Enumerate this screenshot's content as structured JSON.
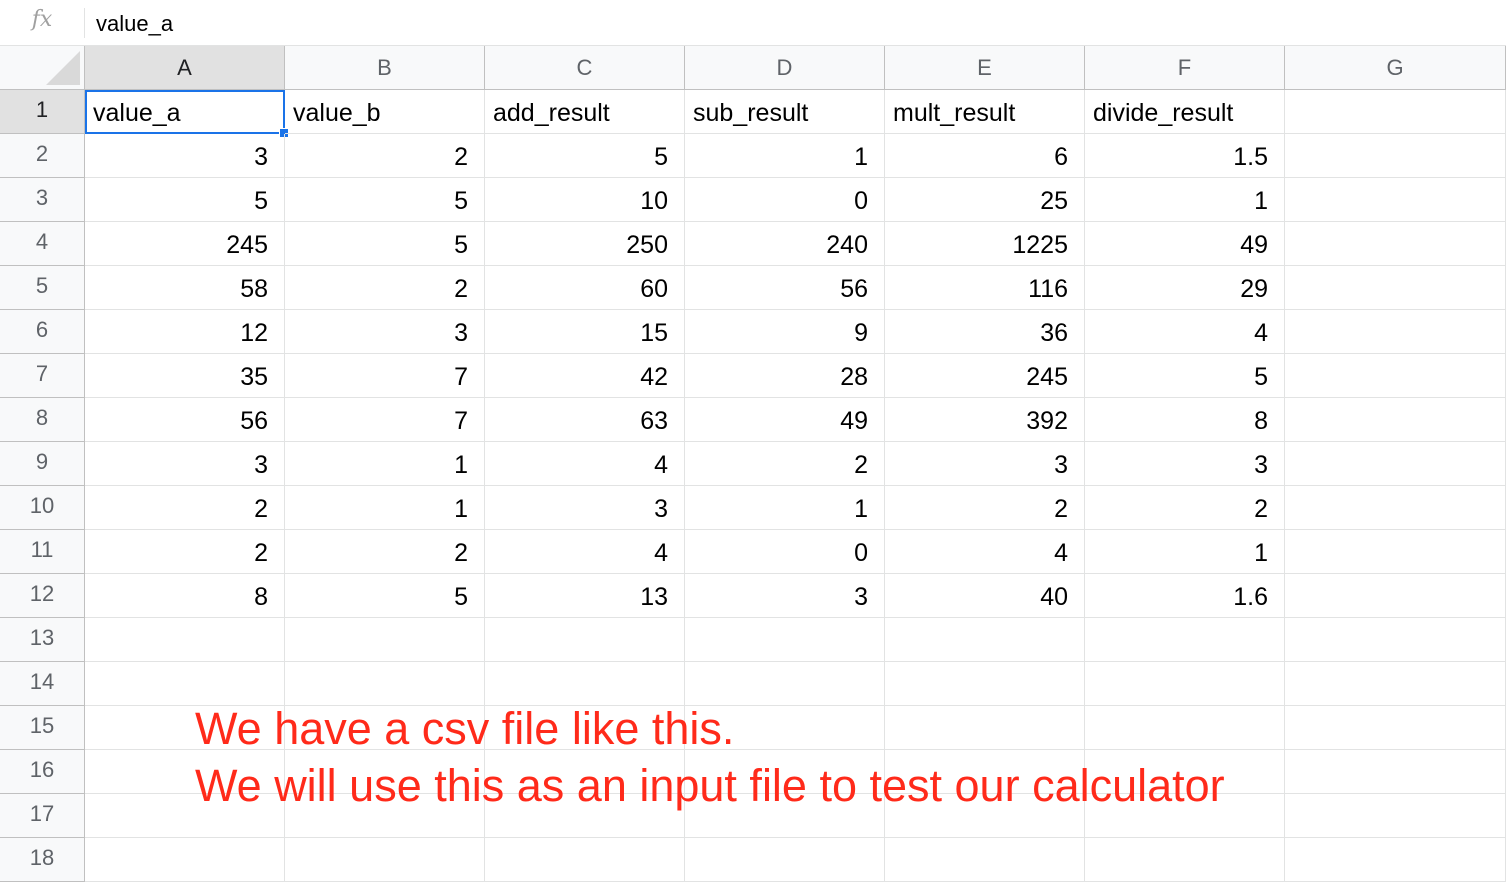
{
  "formula_bar": {
    "fx_label": "fx",
    "value": "value_a"
  },
  "columns": [
    "A",
    "B",
    "C",
    "D",
    "E",
    "F",
    "G"
  ],
  "row_numbers": [
    "1",
    "2",
    "3",
    "4",
    "5",
    "6",
    "7",
    "8",
    "9",
    "10",
    "11",
    "12",
    "13",
    "14",
    "15",
    "16",
    "17",
    "18"
  ],
  "selected_cell": "A1",
  "rows": [
    [
      "value_a",
      "value_b",
      "add_result",
      "sub_result",
      "mult_result",
      "divide_result",
      ""
    ],
    [
      "3",
      "2",
      "5",
      "1",
      "6",
      "1.5",
      ""
    ],
    [
      "5",
      "5",
      "10",
      "0",
      "25",
      "1",
      ""
    ],
    [
      "245",
      "5",
      "250",
      "240",
      "1225",
      "49",
      ""
    ],
    [
      "58",
      "2",
      "60",
      "56",
      "116",
      "29",
      ""
    ],
    [
      "12",
      "3",
      "15",
      "9",
      "36",
      "4",
      ""
    ],
    [
      "35",
      "7",
      "42",
      "28",
      "245",
      "5",
      ""
    ],
    [
      "56",
      "7",
      "63",
      "49",
      "392",
      "8",
      ""
    ],
    [
      "3",
      "1",
      "4",
      "2",
      "3",
      "3",
      ""
    ],
    [
      "2",
      "1",
      "3",
      "1",
      "2",
      "2",
      ""
    ],
    [
      "2",
      "2",
      "4",
      "0",
      "4",
      "1",
      ""
    ],
    [
      "8",
      "5",
      "13",
      "3",
      "40",
      "1.6",
      ""
    ],
    [
      "",
      "",
      "",
      "",
      "",
      "",
      ""
    ],
    [
      "",
      "",
      "",
      "",
      "",
      "",
      ""
    ],
    [
      "",
      "",
      "",
      "",
      "",
      "",
      ""
    ],
    [
      "",
      "",
      "",
      "",
      "",
      "",
      ""
    ],
    [
      "",
      "",
      "",
      "",
      "",
      "",
      ""
    ],
    [
      "",
      "",
      "",
      "",
      "",
      "",
      ""
    ]
  ],
  "annotation": {
    "line1": "We have a csv file like this.",
    "line2": "We will use this as an input file to test our calculator",
    "color": "#ff2a1a"
  },
  "colors": {
    "selection": "#1a73e8",
    "header_bg": "#f8f9fa",
    "active_header_bg": "#e1e1e1"
  }
}
